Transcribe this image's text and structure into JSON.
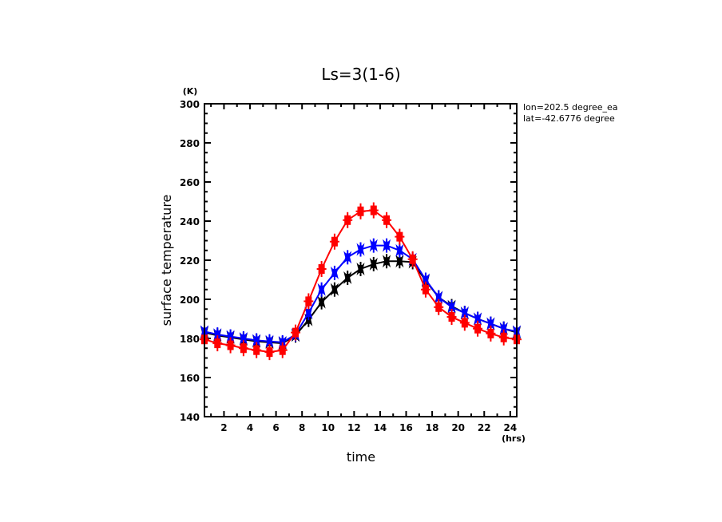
{
  "chart_data": {
    "type": "line",
    "title": "Ls=3(1-6)",
    "xlabel": "time",
    "xunit": "(hrs)",
    "ylabel": "surface temperature",
    "yunit": "(K)",
    "xlim": [
      0.5,
      24.5
    ],
    "ylim": [
      140,
      300
    ],
    "xticks": [
      2,
      4,
      6,
      8,
      10,
      12,
      14,
      16,
      18,
      20,
      22,
      24
    ],
    "xtick_labels": [
      "2",
      "4",
      "6",
      "8",
      "10",
      "12",
      "14",
      "16",
      "18",
      "20",
      "22",
      "24"
    ],
    "yticks": [
      140,
      160,
      180,
      200,
      220,
      240,
      260,
      280,
      300
    ],
    "ytick_labels": [
      "140",
      "160",
      "180",
      "200",
      "220",
      "240",
      "260",
      "280",
      "300"
    ],
    "x_minor_step": 1,
    "y_minor_step": 5,
    "grid": false,
    "annotations": [
      "lon=202.5 degree_ea",
      "lat=-42.6776 degree"
    ],
    "x": [
      0.5,
      1.5,
      2.5,
      3.5,
      4.5,
      5.5,
      6.5,
      7.5,
      8.5,
      9.5,
      10.5,
      11.5,
      12.5,
      13.5,
      14.5,
      15.5,
      16.5,
      17.5,
      18.5,
      19.5,
      20.5,
      21.5,
      22.5,
      23.5,
      24.5
    ],
    "series": [
      {
        "name": "black",
        "color": "#000000",
        "values": [
          183,
          181.5,
          180.5,
          179.5,
          178.5,
          178,
          177.5,
          181.5,
          189.5,
          198.5,
          205,
          211,
          215.5,
          218,
          219.5,
          219.5,
          219,
          209.5,
          201,
          196.5,
          193,
          190,
          187.5,
          185,
          183
        ]
      },
      {
        "name": "blue",
        "color": "#0000ff",
        "values": [
          183.5,
          182,
          181,
          180,
          179,
          178.5,
          178,
          182,
          193,
          205,
          213.5,
          221.5,
          225.5,
          227.5,
          227.5,
          225,
          220.5,
          210,
          201,
          196,
          193,
          190,
          187.5,
          185,
          183.5
        ]
      },
      {
        "name": "red",
        "color": "#ff0000",
        "values": [
          179.5,
          177.5,
          176.5,
          175,
          174,
          173,
          174,
          183,
          199,
          215.5,
          229.5,
          240.5,
          245,
          245.5,
          240.5,
          232,
          220.5,
          205,
          196,
          191,
          188,
          185,
          182.5,
          180.5,
          179.5
        ]
      }
    ]
  }
}
